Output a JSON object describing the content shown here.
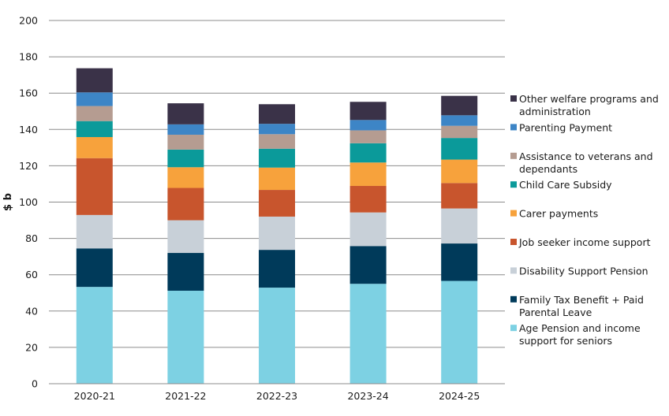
{
  "chart_data": {
    "type": "bar",
    "stacked": true,
    "title": "",
    "xlabel": "",
    "ylabel": "$ b",
    "ylim": [
      0,
      200
    ],
    "yticks": [
      0,
      20,
      40,
      60,
      80,
      100,
      120,
      140,
      160,
      180,
      200
    ],
    "grid": true,
    "legend_position": "right",
    "categories": [
      "2020-21",
      "2021-22",
      "2022-23",
      "2023-24",
      "2024-25"
    ],
    "series": [
      {
        "name": "Age Pension and income support for seniors",
        "color": "#7dd1e3",
        "values": [
          53.3,
          51.2,
          52.9,
          55.0,
          56.6
        ]
      },
      {
        "name": "Family Tax Benefit + Paid Parental Leave",
        "color": "#003a5a",
        "values": [
          21.2,
          20.8,
          20.8,
          20.8,
          20.6
        ]
      },
      {
        "name": "Disability Support Pension",
        "color": "#c8d0d8",
        "values": [
          18.4,
          18.0,
          18.3,
          18.5,
          19.3
        ]
      },
      {
        "name": "Job seeker income support",
        "color": "#c8552d",
        "values": [
          31.3,
          17.8,
          14.7,
          14.6,
          14.0
        ]
      },
      {
        "name": "Carer payments",
        "color": "#f7a23c",
        "values": [
          11.6,
          11.4,
          12.3,
          12.9,
          12.9
        ]
      },
      {
        "name": "Child Care Subsidy",
        "color": "#0b9a9a",
        "values": [
          8.8,
          9.7,
          10.4,
          10.6,
          11.9
        ]
      },
      {
        "name": "Assistance to veterans and dependants",
        "color": "#b59c91",
        "values": [
          8.3,
          8.2,
          8.0,
          7.1,
          6.7
        ]
      },
      {
        "name": "Parenting Payment",
        "color": "#3d85c6",
        "values": [
          7.5,
          5.7,
          5.7,
          5.7,
          5.8
        ]
      },
      {
        "name": "Other welfare programs and administration",
        "color": "#3a3248",
        "values": [
          13.3,
          11.6,
          10.8,
          10.0,
          10.7
        ]
      }
    ]
  },
  "legend": [
    {
      "series": 8,
      "lines": [
        "Other welfare programs and",
        "administration"
      ]
    },
    {
      "series": 7,
      "lines": [
        "Parenting Payment"
      ]
    },
    {
      "series": 6,
      "lines": [
        "Assistance to veterans and",
        "dependants"
      ]
    },
    {
      "series": 5,
      "lines": [
        "Child Care Subsidy"
      ]
    },
    {
      "series": 4,
      "lines": [
        "Carer payments"
      ]
    },
    {
      "series": 3,
      "lines": [
        "Job seeker income support"
      ]
    },
    {
      "series": 2,
      "lines": [
        "Disability Support Pension"
      ]
    },
    {
      "series": 1,
      "lines": [
        "Family Tax Benefit + Paid",
        "Parental Leave"
      ]
    },
    {
      "series": 0,
      "lines": [
        "Age Pension and income",
        "support for seniors"
      ]
    }
  ]
}
